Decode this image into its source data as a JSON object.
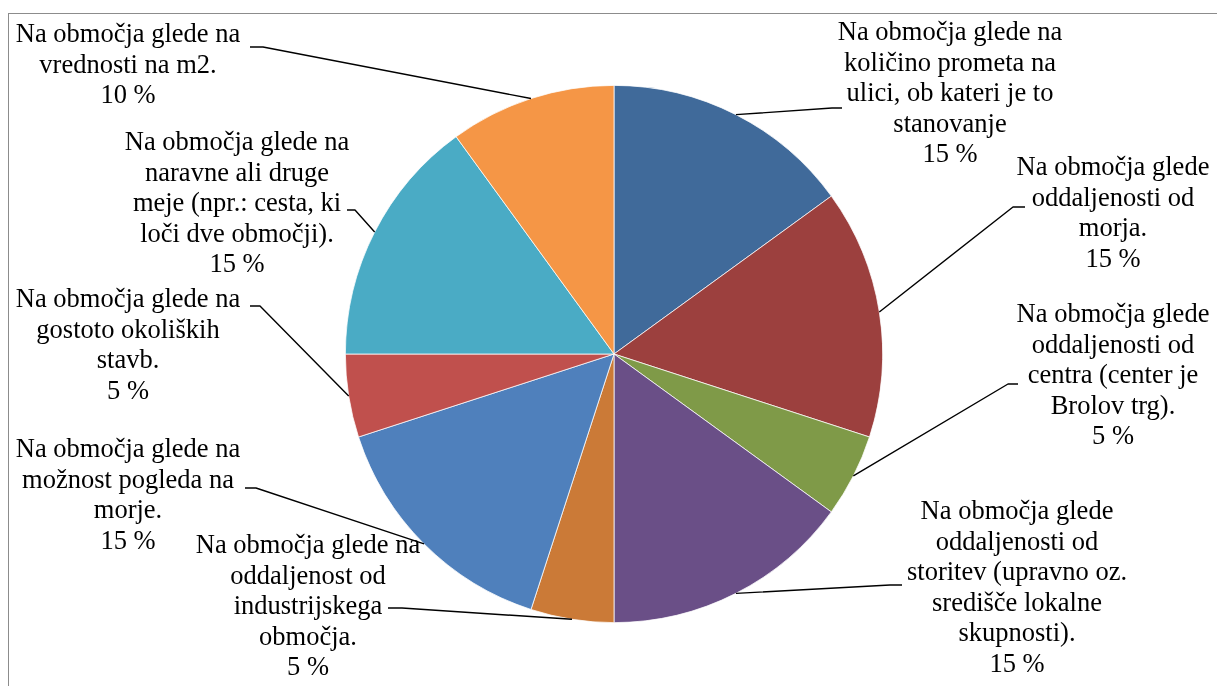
{
  "chart_data": {
    "type": "pie",
    "categories": [
      "Na območja glede na količino prometa na ulici, ob kateri je to stanovanje",
      "Na območja glede oddaljenosti od morja.",
      "Na območja glede oddaljenosti od centra (center je Brolov trg).",
      "Na območja glede oddaljenosti od storitev (upravno oz. središče lokalne skupnosti).",
      "Na območja glede na oddaljenost od industrijskega območja.",
      "Na območja glede na možnost pogleda na morje.",
      "Na območja glede na gostoto okoliških stavb.",
      "Na območja glede na naravne ali druge meje (npr.: cesta, ki loči dve območji).",
      "Na območja glede na vrednosti na m2."
    ],
    "values": [
      15,
      15,
      5,
      15,
      5,
      15,
      5,
      15,
      10
    ],
    "colors": [
      "#406a9a",
      "#9c403e",
      "#7f9a48",
      "#6a4f87",
      "#cb7a37",
      "#4f80bc",
      "#c0504d",
      "#4aabc5",
      "#f59646"
    ],
    "value_labels": [
      "15 %",
      "15 %",
      "5 %",
      "15 %",
      "5 %",
      "15 %",
      "5 %",
      "15 %",
      "10 %"
    ]
  }
}
